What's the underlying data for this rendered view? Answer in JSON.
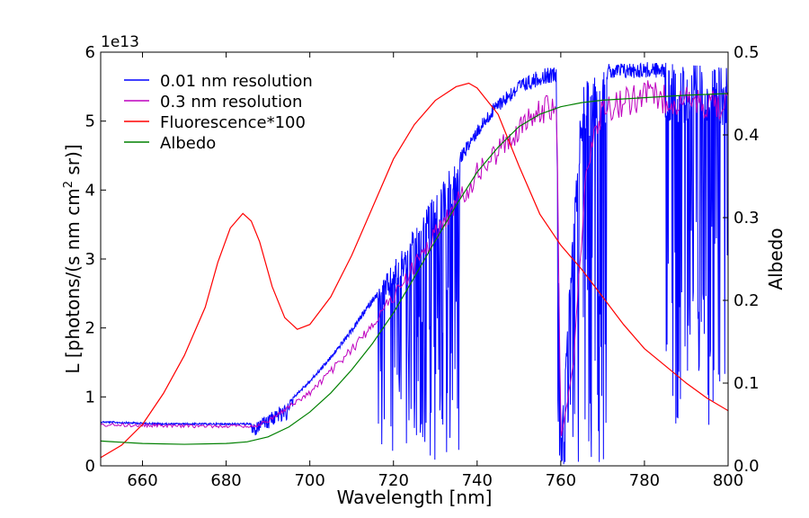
{
  "chart_data": {
    "type": "line",
    "xlabel": "Wavelength [nm]",
    "ylabel": "L [photons/(s nm cm",
    "ylabel_sup": "2",
    "ylabel_tail": "  sr)]",
    "y2label": "Albedo",
    "y_offset_label": "1e13",
    "xlim": [
      650,
      800
    ],
    "ylim": [
      0,
      6
    ],
    "y2lim": [
      0,
      0.5
    ],
    "xticks": [
      660,
      680,
      700,
      720,
      740,
      760,
      780,
      800
    ],
    "yticks": [
      0,
      1,
      2,
      3,
      4,
      5,
      6
    ],
    "y2ticks": [
      0.0,
      0.1,
      0.2,
      0.3,
      0.4,
      0.5
    ],
    "xtick_labels": [
      "660",
      "680",
      "700",
      "720",
      "740",
      "760",
      "780",
      "800"
    ],
    "ytick_labels": [
      "0",
      "1",
      "2",
      "3",
      "4",
      "5",
      "6"
    ],
    "y2tick_labels": [
      "0.0",
      "0.1",
      "0.2",
      "0.3",
      "0.4",
      "0.5"
    ],
    "legend_position": "top-left",
    "grid": false,
    "colors": {
      "hires": "#0000ff",
      "lores": "#bf00bf",
      "fluor": "#ff0000",
      "albedo": "#008000"
    },
    "series": [
      {
        "name": "0.01 nm resolution",
        "axis": "left",
        "color": "#0000ff",
        "envelope_x": [
          650,
          655,
          660,
          665,
          670,
          675,
          680,
          685,
          687,
          690,
          695,
          700,
          705,
          710,
          715,
          720,
          725,
          730,
          735,
          740,
          745,
          750,
          755,
          759,
          760,
          762,
          765,
          770,
          775,
          780,
          785,
          790,
          795,
          800
        ],
        "envelope_y": [
          0.65,
          0.64,
          0.63,
          0.62,
          0.62,
          0.62,
          0.62,
          0.62,
          0.62,
          0.75,
          0.95,
          1.25,
          1.6,
          2.0,
          2.45,
          2.95,
          3.45,
          3.95,
          4.45,
          4.95,
          5.35,
          5.6,
          5.75,
          5.8,
          0.25,
          2.5,
          5.5,
          5.82,
          5.85,
          5.86,
          5.85,
          5.82,
          5.8,
          5.78
        ],
        "absorption_bands": [
          {
            "from": 686,
            "to": 696,
            "depth": 0.3
          },
          {
            "from": 716,
            "to": 736,
            "depth": 0.98
          },
          {
            "from": 759,
            "to": 771,
            "depth": 1.0
          },
          {
            "from": 785,
            "to": 800,
            "depth": 0.9
          }
        ]
      },
      {
        "name": "0.3 nm resolution",
        "axis": "left",
        "color": "#bf00bf",
        "envelope_x": [
          650,
          660,
          670,
          680,
          687,
          690,
          700,
          710,
          720,
          730,
          740,
          750,
          759,
          760,
          763,
          766,
          770,
          780,
          790,
          800
        ],
        "envelope_y": [
          0.62,
          0.61,
          0.6,
          0.6,
          0.6,
          0.68,
          1.1,
          1.75,
          2.55,
          3.5,
          4.4,
          5.1,
          5.5,
          0.4,
          1.5,
          4.5,
          5.4,
          5.6,
          5.5,
          5.45
        ]
      },
      {
        "name": "Fluorescence*100",
        "axis": "left",
        "color": "#ff0000",
        "x": [
          650,
          655,
          660,
          665,
          670,
          675,
          678,
          681,
          684,
          686,
          688,
          691,
          694,
          697,
          700,
          705,
          710,
          715,
          720,
          725,
          730,
          735,
          738,
          740,
          745,
          750,
          755,
          760,
          765,
          770,
          775,
          780,
          785,
          790,
          795,
          800
        ],
        "y": [
          0.12,
          0.3,
          0.6,
          1.05,
          1.6,
          2.3,
          2.95,
          3.45,
          3.66,
          3.55,
          3.25,
          2.6,
          2.15,
          1.98,
          2.05,
          2.45,
          3.05,
          3.75,
          4.45,
          4.95,
          5.3,
          5.5,
          5.55,
          5.48,
          5.1,
          4.35,
          3.65,
          3.2,
          2.85,
          2.45,
          2.05,
          1.7,
          1.45,
          1.2,
          0.98,
          0.8
        ]
      },
      {
        "name": "Albedo",
        "axis": "right",
        "color": "#008000",
        "x": [
          650,
          660,
          670,
          680,
          685,
          690,
          695,
          700,
          705,
          710,
          715,
          720,
          725,
          730,
          735,
          740,
          745,
          750,
          755,
          760,
          765,
          770,
          780,
          790,
          800
        ],
        "y": [
          0.03,
          0.027,
          0.026,
          0.027,
          0.029,
          0.035,
          0.047,
          0.065,
          0.088,
          0.116,
          0.148,
          0.185,
          0.228,
          0.272,
          0.315,
          0.355,
          0.385,
          0.41,
          0.425,
          0.434,
          0.439,
          0.442,
          0.445,
          0.448,
          0.45
        ]
      }
    ]
  }
}
